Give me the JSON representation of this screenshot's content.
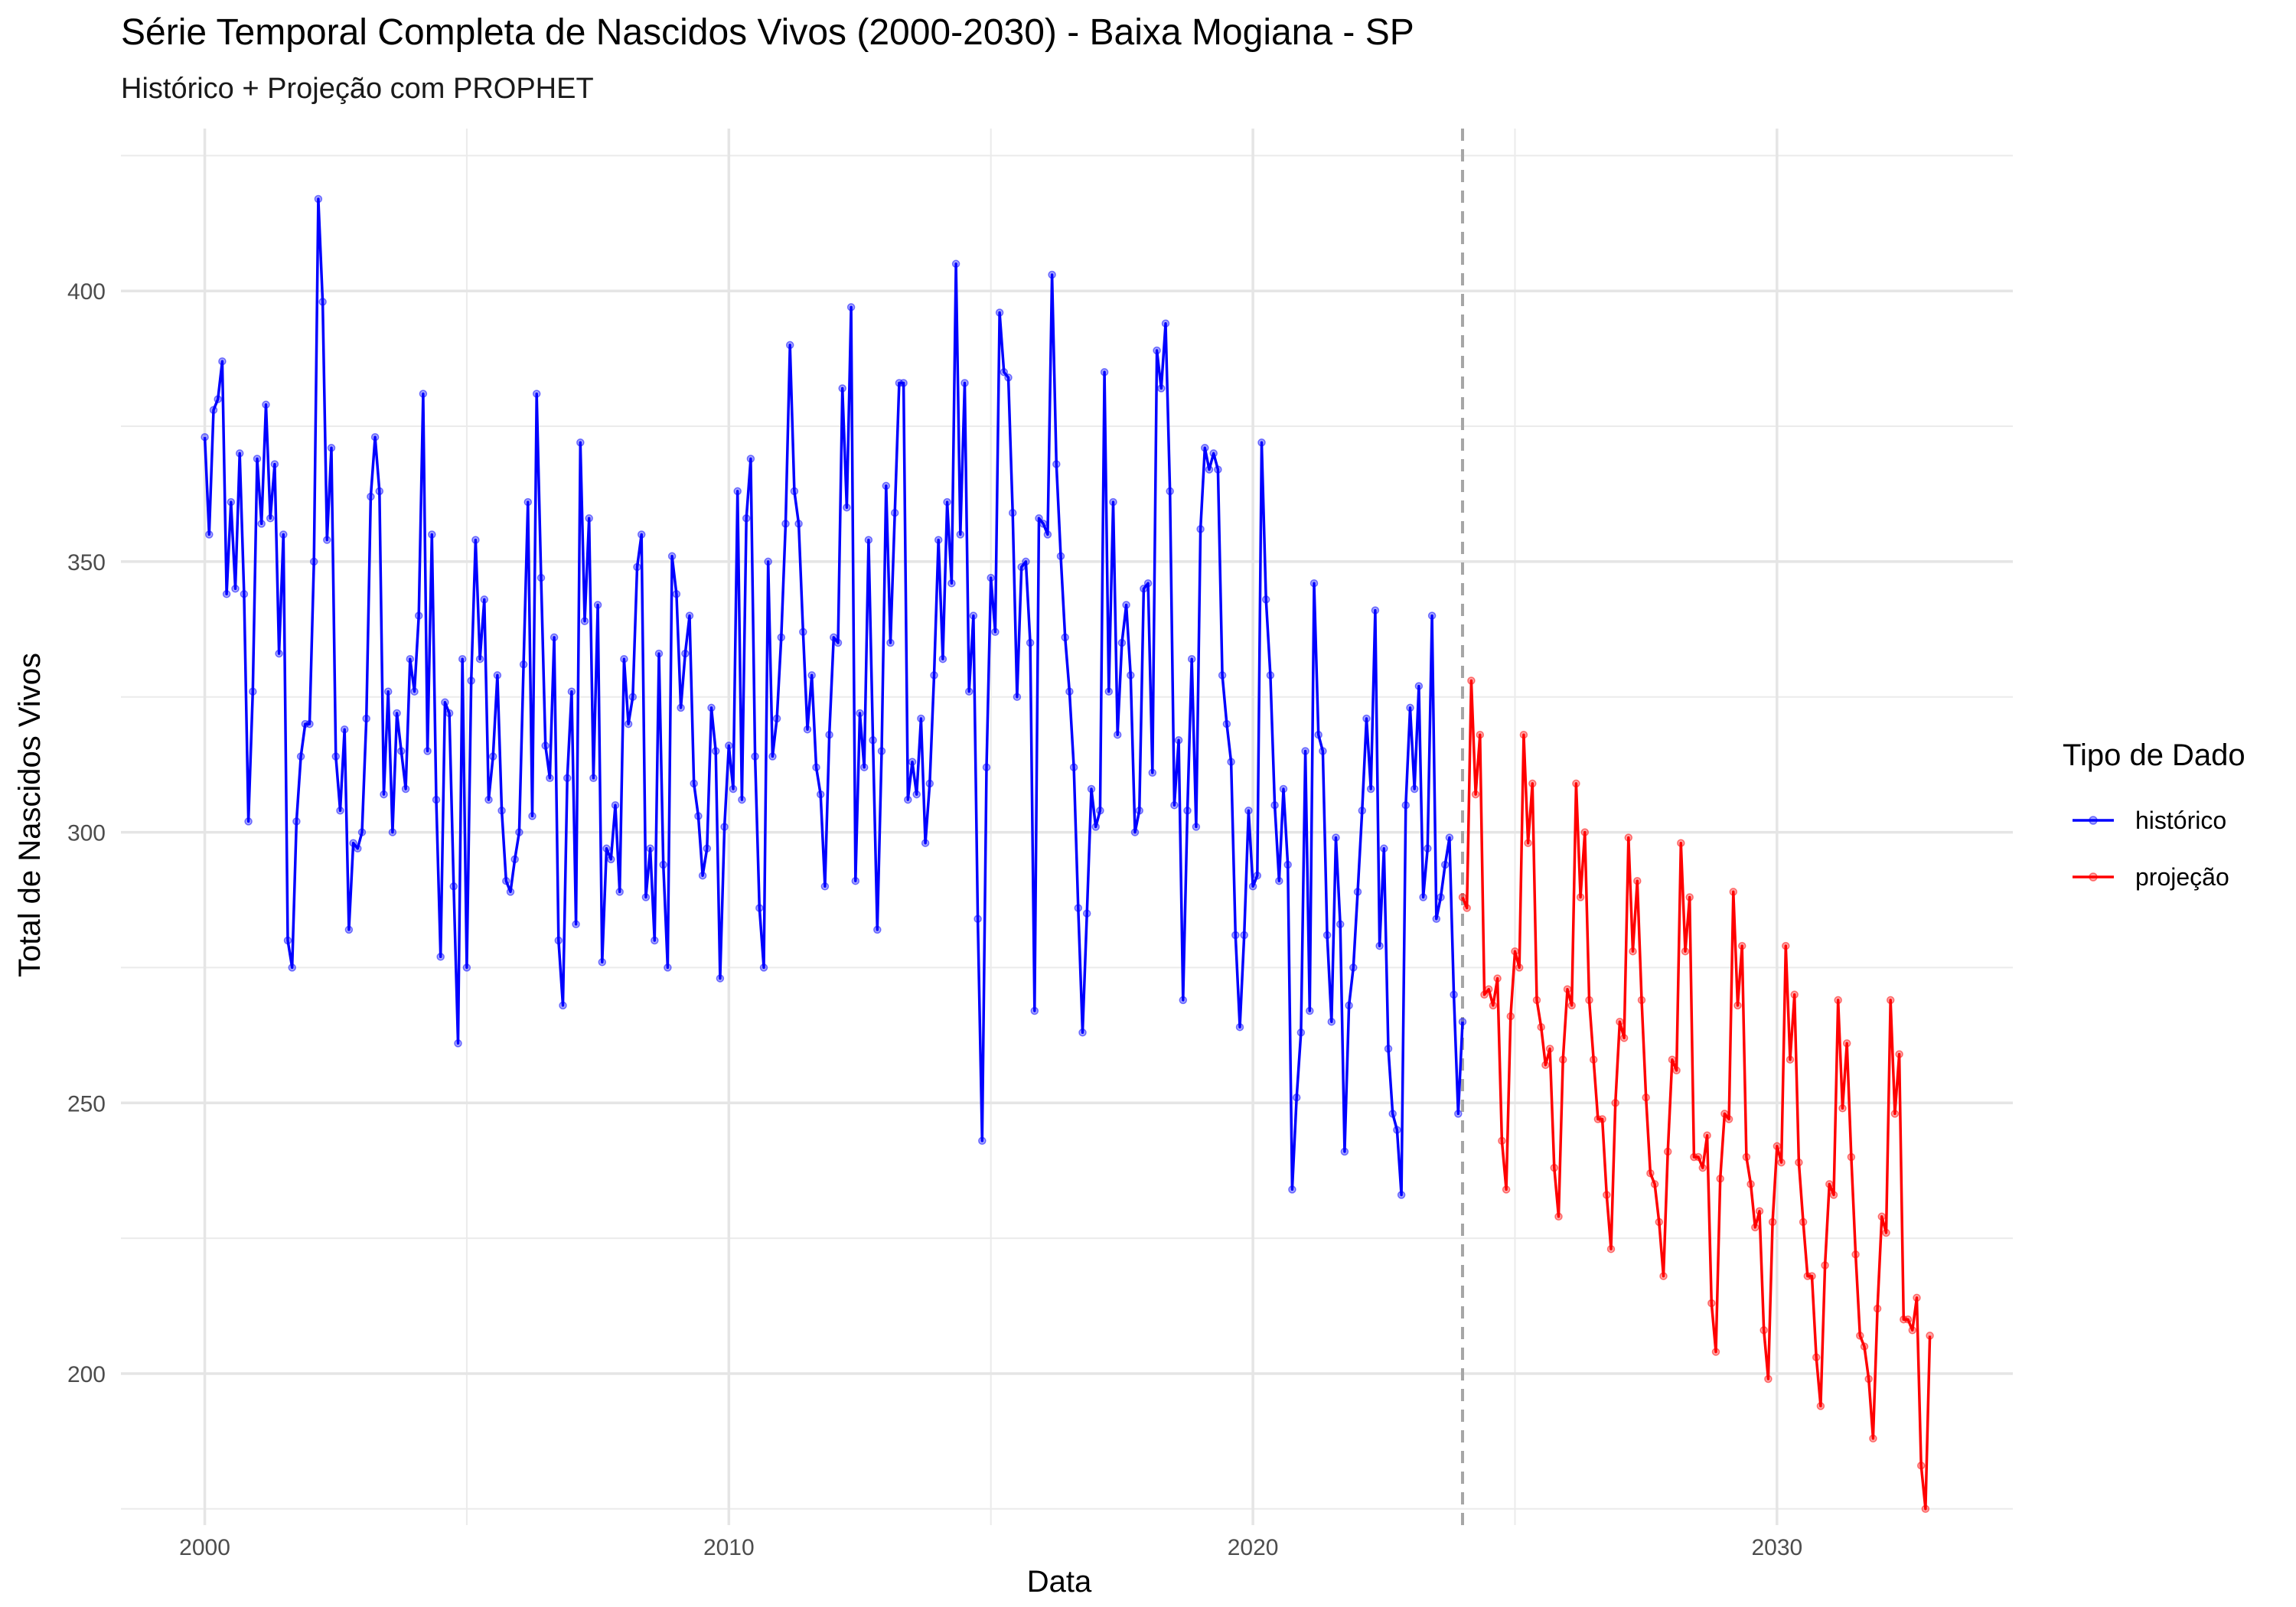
{
  "chart_data": {
    "type": "line",
    "title": "Série Temporal Completa de Nascidos Vivos (2000-2030) -  Baixa Mogiana - SP",
    "subtitle": "Histórico + Projeção com PROPHET",
    "xlabel": "Data",
    "ylabel": "Total de Nascidos Vivos",
    "x_ticks": [
      2000,
      2010,
      2020,
      2030
    ],
    "y_ticks": [
      200,
      250,
      300,
      350,
      400
    ],
    "xlim": [
      1998.4,
      2034.5
    ],
    "ylim": [
      172,
      430
    ],
    "grid": true,
    "legend": {
      "title": "Tipo de Dado",
      "placement": "right"
    },
    "split_date": 2024.0,
    "series": [
      {
        "name": "histórico",
        "color": "#0000ff",
        "x_start": 2000.0,
        "x_step_months": 1,
        "values": [
          373,
          355,
          378,
          380,
          387,
          344,
          361,
          345,
          370,
          344,
          302,
          326,
          369,
          357,
          379,
          358,
          368,
          333,
          355,
          280,
          275,
          302,
          314,
          320,
          320,
          350,
          417,
          398,
          354,
          371,
          314,
          304,
          319,
          282,
          298,
          297,
          300,
          321,
          362,
          373,
          363,
          307,
          326,
          300,
          322,
          315,
          308,
          332,
          326,
          340,
          381,
          315,
          355,
          306,
          277,
          324,
          322,
          290,
          261,
          332,
          275,
          328,
          354,
          332,
          343,
          306,
          314,
          329,
          304,
          291,
          289,
          295,
          300,
          331,
          361,
          303,
          381,
          347,
          316,
          310,
          336,
          280,
          268,
          310,
          326,
          283,
          372,
          339,
          358,
          310,
          342,
          276,
          297,
          295,
          305,
          289,
          332,
          320,
          325,
          349,
          355,
          288,
          297,
          280,
          333,
          294,
          275,
          351,
          344,
          323,
          333,
          340,
          309,
          303,
          292,
          297,
          323,
          315,
          273,
          301,
          316,
          308,
          363,
          306,
          358,
          369,
          314,
          286,
          275,
          350,
          314,
          321,
          336,
          357,
          390,
          363,
          357,
          337,
          319,
          329,
          312,
          307,
          290,
          318,
          336,
          335,
          382,
          360,
          397,
          291,
          322,
          312,
          354,
          317,
          282,
          315,
          364,
          335,
          359,
          383,
          383,
          306,
          313,
          307,
          321,
          298,
          309,
          329,
          354,
          332,
          361,
          346,
          405,
          355,
          383,
          326,
          340,
          284,
          243,
          312,
          347,
          337,
          396,
          385,
          384,
          359,
          325,
          349,
          350,
          335,
          267,
          358,
          357,
          355,
          403,
          368,
          351,
          336,
          326,
          312,
          286,
          263,
          285,
          308,
          301,
          304,
          385,
          326,
          361,
          318,
          335,
          342,
          329,
          300,
          304,
          345,
          346,
          311,
          389,
          382,
          394,
          363,
          305,
          317,
          269,
          304,
          332,
          301,
          356,
          371,
          367,
          370,
          367,
          329,
          320,
          313,
          281,
          264,
          281,
          304,
          290,
          292,
          372,
          343,
          329,
          305,
          291,
          308,
          294,
          234,
          251,
          263,
          315,
          267,
          346,
          318,
          315,
          281,
          265,
          299,
          283,
          241,
          268,
          275,
          289,
          304,
          321,
          308,
          341,
          279,
          297,
          260,
          248,
          245,
          233,
          305,
          323,
          308,
          327,
          288,
          297,
          340,
          284,
          288,
          294,
          299,
          270,
          248,
          265
        ]
      },
      {
        "name": "projeção",
        "color": "#ff0000",
        "x_start": 2024.0,
        "x_step_months": 1,
        "values": [
          288,
          286,
          328,
          307,
          318,
          270,
          271,
          268,
          273,
          243,
          234,
          266,
          278,
          275,
          318,
          298,
          309,
          269,
          264,
          257,
          260,
          238,
          229,
          258,
          271,
          268,
          309,
          288,
          300,
          269,
          258,
          247,
          247,
          233,
          223,
          250,
          265,
          262,
          299,
          278,
          291,
          269,
          251,
          237,
          235,
          228,
          218,
          241,
          258,
          256,
          298,
          278,
          288,
          240,
          240,
          238,
          244,
          213,
          204,
          236,
          248,
          247,
          289,
          268,
          279,
          240,
          235,
          227,
          230,
          208,
          199,
          228,
          242,
          239,
          279,
          258,
          270,
          239,
          228,
          218,
          218,
          203,
          194,
          220,
          235,
          233,
          269,
          249,
          261,
          240,
          222,
          207,
          205,
          199,
          188,
          212,
          229,
          226,
          269,
          248,
          259,
          210,
          210,
          208,
          214,
          183,
          175,
          207
        ]
      }
    ]
  }
}
